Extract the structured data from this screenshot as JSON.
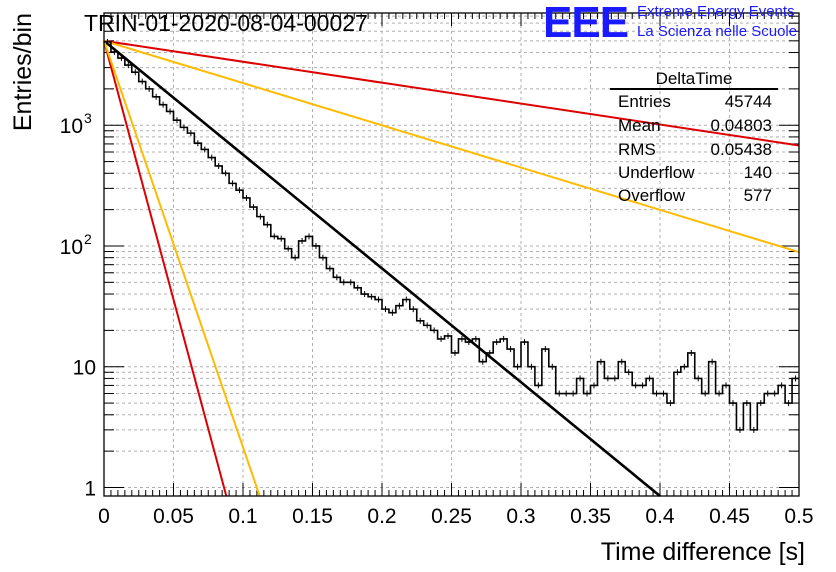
{
  "chart_data": {
    "type": "line",
    "title": "TRIN-01-2020-08-04-00027",
    "xlabel": "Time difference [s]",
    "ylabel": "Entries/bin",
    "xlim": [
      0,
      0.5
    ],
    "ylim": [
      0.85,
      8500
    ],
    "y_scale": "log",
    "grid": true,
    "x_ticks": [
      "0",
      "0.05",
      "0.1",
      "0.15",
      "0.2",
      "0.25",
      "0.3",
      "0.35",
      "0.4",
      "0.45",
      "0.5"
    ],
    "y_ticks": [
      {
        "value": 1,
        "label": "1"
      },
      {
        "value": 10,
        "label": "10"
      },
      {
        "value": 100,
        "label": "10",
        "exp": "2"
      },
      {
        "value": 1000,
        "label": "10",
        "exp": "3"
      }
    ],
    "histogram": {
      "color": "#000000",
      "bin_width": 0.005,
      "values": [
        4900,
        4050,
        3600,
        3150,
        2750,
        2300,
        2000,
        1720,
        1480,
        1300,
        1100,
        960,
        860,
        710,
        630,
        540,
        460,
        400,
        330,
        290,
        250,
        210,
        175,
        150,
        120,
        115,
        95,
        80,
        110,
        120,
        100,
        80,
        65,
        55,
        50,
        50,
        45,
        40,
        38,
        36,
        30,
        28,
        32,
        36,
        30,
        24,
        22,
        20,
        17,
        18,
        13,
        17,
        16,
        17,
        11,
        13,
        16,
        17,
        14,
        10,
        16,
        10,
        7,
        14,
        10,
        6,
        6,
        6,
        8,
        6,
        7,
        11,
        8,
        8,
        11,
        9,
        7,
        7,
        8,
        6,
        6,
        5,
        9,
        10,
        13,
        8,
        6,
        11,
        6,
        7,
        5,
        3,
        5,
        3,
        5,
        6,
        6,
        7,
        5,
        8
      ]
    },
    "series": [
      {
        "color": "#000000",
        "x": [
          0,
          0.4
        ],
        "y": [
          5000,
          0.85
        ]
      },
      {
        "color": "#dd0000",
        "x": [
          0,
          0.5
        ],
        "y": [
          5000,
          680
        ]
      },
      {
        "color": "#ffbb00",
        "x": [
          0,
          0.5
        ],
        "y": [
          5000,
          89
        ]
      },
      {
        "color": "#dd0000",
        "x": [
          0,
          0.088
        ],
        "y": [
          5000,
          0.85
        ]
      },
      {
        "color": "#ffbb00",
        "x": [
          0,
          0.112
        ],
        "y": [
          5000,
          0.85
        ]
      }
    ]
  },
  "logo": {
    "mark": "EEE",
    "line1": "Extreme Energy Events",
    "line2": "La Scienza nelle Scuole"
  },
  "stats": {
    "title": "DeltaTime",
    "rows": [
      {
        "label": "Entries",
        "value": "45744"
      },
      {
        "label": "Mean",
        "value": "0.04803"
      },
      {
        "label": "RMS",
        "value": "0.05438"
      },
      {
        "label": "Underflow",
        "value": "140"
      },
      {
        "label": "Overflow",
        "value": "577"
      }
    ]
  }
}
